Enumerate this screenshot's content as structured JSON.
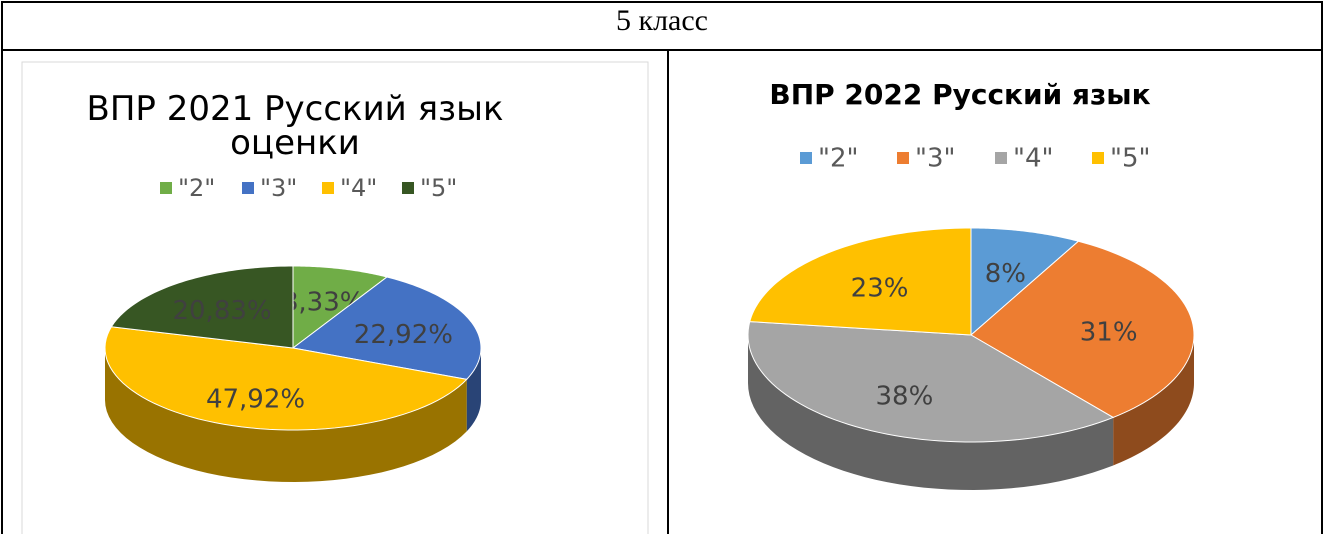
{
  "table": {
    "header": "5 класс"
  },
  "chart_data": [
    {
      "type": "pie",
      "title": "ВПР 2021 Русский язык оценки",
      "categories": [
        "\"2\"",
        "\"3\"",
        "\"4\"",
        "\"5\""
      ],
      "values": [
        8.33,
        22.92,
        47.92,
        20.83
      ],
      "value_labels": [
        "8,33%",
        "22,92%",
        "47,92%",
        "20,83%"
      ],
      "colors": [
        "#70ad47",
        "#4472c4",
        "#ffc000",
        "#375623"
      ]
    },
    {
      "type": "pie",
      "title": "ВПР 2022 Русский язык",
      "categories": [
        "\"2\"",
        "\"3\"",
        "\"4\"",
        "\"5\""
      ],
      "values": [
        8,
        31,
        38,
        23
      ],
      "value_labels": [
        "8%",
        "31%",
        "38%",
        "23%"
      ],
      "colors": [
        "#5b9bd5",
        "#ed7d31",
        "#a5a5a5",
        "#ffc000"
      ]
    }
  ]
}
